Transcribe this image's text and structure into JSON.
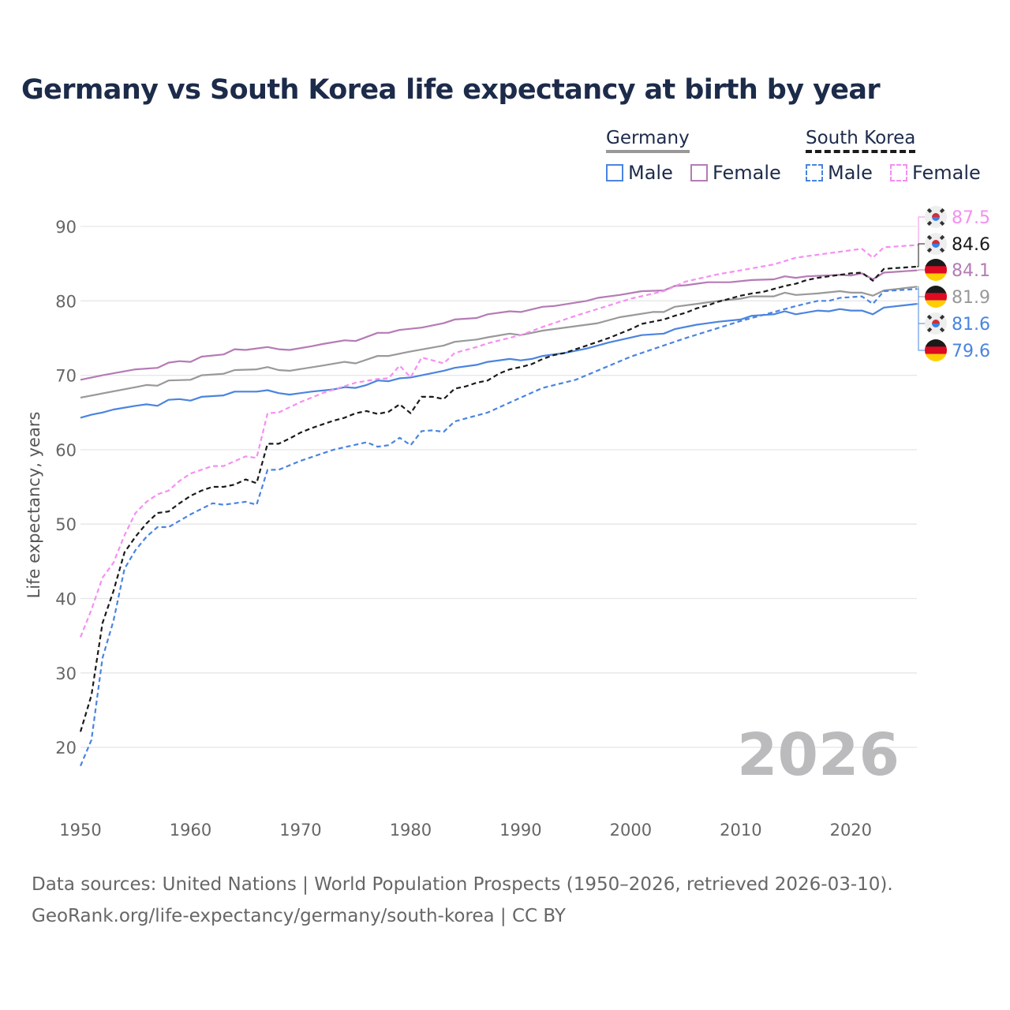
{
  "chart_data": {
    "type": "line",
    "title": "Germany vs South Korea life expectancy at birth by year",
    "xlabel": "",
    "ylabel": "Life expectancy, years",
    "xlim": [
      1950,
      2026
    ],
    "ylim": [
      15,
      92
    ],
    "x_ticks": [
      "1950",
      "1960",
      "1970",
      "1980",
      "1990",
      "2000",
      "2010",
      "2020"
    ],
    "y_ticks": [
      "20",
      "30",
      "40",
      "50",
      "60",
      "70",
      "80",
      "90"
    ],
    "grid": true,
    "watermark_year": "2026",
    "legend": {
      "placement": "top-right",
      "groups": [
        {
          "name": "Germany",
          "items": [
            "Male",
            "Female"
          ]
        },
        {
          "name": "South Korea",
          "items": [
            "Male",
            "Female"
          ]
        }
      ]
    },
    "series": [
      {
        "name": "South Korea Female",
        "country": "kr",
        "color": "#f68ef2",
        "dashed": true,
        "end_label": "87.5",
        "x": [
          1950,
          1951,
          1952,
          1953,
          1954,
          1955,
          1956,
          1957,
          1958,
          1959,
          1960,
          1962,
          1963,
          1965,
          1966,
          1967,
          1968,
          1970,
          1972,
          1975,
          1977,
          1978,
          1979,
          1980,
          1981,
          1983,
          1984,
          1986,
          1987,
          1990,
          1992,
          1995,
          2000,
          2003,
          2005,
          2008,
          2010,
          2013,
          2015,
          2018,
          2020,
          2021,
          2022,
          2023,
          2026
        ],
        "y": [
          34.8,
          38.5,
          42.8,
          44.8,
          48.5,
          51.5,
          53,
          54,
          54.5,
          55.8,
          56.8,
          57.8,
          57.8,
          59.1,
          58.9,
          64.9,
          65,
          66.4,
          67.6,
          69,
          69.5,
          69.6,
          71.3,
          69.7,
          72.4,
          71.6,
          73,
          73.8,
          74.3,
          75.4,
          76.5,
          78,
          80.3,
          81.3,
          82.6,
          83.6,
          84.1,
          84.9,
          85.8,
          86.4,
          86.8,
          87,
          85.8,
          87.2,
          87.5
        ]
      },
      {
        "name": "South Korea",
        "country": "kr",
        "color": "#1a1a1a",
        "dashed": true,
        "end_label": "84.6",
        "x": [
          1950,
          1951,
          1952,
          1953,
          1954,
          1955,
          1956,
          1957,
          1958,
          1959,
          1960,
          1961,
          1962,
          1963,
          1964,
          1965,
          1966,
          1967,
          1968,
          1969,
          1970,
          1971,
          1972,
          1973,
          1974,
          1975,
          1976,
          1977,
          1978,
          1979,
          1980,
          1981,
          1982,
          1983,
          1984,
          1985,
          1986,
          1987,
          1988,
          1989,
          1990,
          1991,
          1992,
          1993,
          1994,
          1995,
          1996,
          1997,
          1998,
          1999,
          2000,
          2001,
          2002,
          2003,
          2004,
          2005,
          2006,
          2007,
          2008,
          2009,
          2010,
          2011,
          2012,
          2013,
          2014,
          2015,
          2016,
          2017,
          2018,
          2019,
          2020,
          2021,
          2022,
          2023,
          2024,
          2025,
          2026
        ],
        "y": [
          22.1,
          27,
          36.7,
          41,
          46.2,
          48.3,
          50.1,
          51.5,
          51.7,
          52.8,
          53.8,
          54.5,
          55,
          55,
          55.3,
          56,
          55.5,
          60.8,
          60.8,
          61.5,
          62.3,
          62.9,
          63.4,
          63.9,
          64.3,
          64.9,
          65.2,
          64.8,
          65.1,
          66.1,
          64.9,
          67.1,
          67.1,
          66.8,
          68.2,
          68.5,
          69,
          69.3,
          70.2,
          70.8,
          71.1,
          71.5,
          72.2,
          72.7,
          73,
          73.5,
          74,
          74.5,
          75,
          75.6,
          76.2,
          76.9,
          77.2,
          77.5,
          78,
          78.4,
          79,
          79.4,
          79.9,
          80.3,
          80.7,
          81,
          81.2,
          81.6,
          82,
          82.3,
          82.8,
          83.1,
          83.3,
          83.5,
          83.7,
          83.8,
          82.7,
          84.3,
          84.4,
          84.5,
          84.6
        ]
      },
      {
        "name": "Germany Female",
        "country": "de",
        "color": "#b57bb5",
        "dashed": false,
        "end_label": "84.1",
        "x": [
          1950,
          1952,
          1955,
          1957,
          1958,
          1959,
          1960,
          1961,
          1963,
          1964,
          1965,
          1967,
          1968,
          1969,
          1971,
          1972,
          1974,
          1975,
          1977,
          1978,
          1979,
          1981,
          1983,
          1984,
          1986,
          1987,
          1989,
          1990,
          1992,
          1993,
          1996,
          1997,
          1999,
          2001,
          2003,
          2004,
          2005,
          2007,
          2009,
          2011,
          2013,
          2014,
          2015,
          2016,
          2019,
          2020,
          2021,
          2022,
          2023,
          2026
        ],
        "y": [
          69.4,
          70,
          70.8,
          71,
          71.7,
          71.9,
          71.8,
          72.5,
          72.8,
          73.5,
          73.4,
          73.8,
          73.5,
          73.4,
          73.9,
          74.2,
          74.7,
          74.6,
          75.7,
          75.7,
          76.1,
          76.4,
          77,
          77.5,
          77.7,
          78.2,
          78.6,
          78.5,
          79.2,
          79.3,
          80,
          80.4,
          80.8,
          81.3,
          81.4,
          82,
          82.1,
          82.5,
          82.5,
          82.8,
          82.9,
          83.3,
          83.1,
          83.3,
          83.5,
          83.4,
          83.7,
          82.9,
          83.8,
          84.1
        ]
      },
      {
        "name": "Germany",
        "country": "de",
        "color": "#999999",
        "dashed": false,
        "end_label": "81.9",
        "x": [
          1950,
          1955,
          1956,
          1957,
          1958,
          1960,
          1961,
          1963,
          1964,
          1966,
          1967,
          1968,
          1969,
          1972,
          1974,
          1975,
          1977,
          1978,
          1980,
          1983,
          1984,
          1986,
          1987,
          1989,
          1990,
          1992,
          1995,
          1997,
          1999,
          2002,
          2003,
          2004,
          2006,
          2008,
          2010,
          2011,
          2013,
          2014,
          2015,
          2017,
          2019,
          2020,
          2021,
          2022,
          2023,
          2026
        ],
        "y": [
          67,
          68.4,
          68.7,
          68.6,
          69.3,
          69.4,
          70,
          70.2,
          70.7,
          70.8,
          71.1,
          70.7,
          70.6,
          71.3,
          71.8,
          71.6,
          72.6,
          72.6,
          73.2,
          74,
          74.5,
          74.8,
          75.1,
          75.6,
          75.4,
          76,
          76.6,
          77,
          77.8,
          78.5,
          78.5,
          79.2,
          79.6,
          80,
          80.3,
          80.6,
          80.6,
          81.1,
          80.8,
          81,
          81.3,
          81.1,
          81.1,
          80.7,
          81.4,
          81.9
        ]
      },
      {
        "name": "South Korea Male",
        "country": "kr",
        "color": "#4a84e0",
        "dashed": true,
        "end_label": "81.6",
        "x": [
          1950,
          1951,
          1952,
          1953,
          1954,
          1955,
          1956,
          1957,
          1958,
          1960,
          1962,
          1963,
          1965,
          1966,
          1967,
          1968,
          1970,
          1973,
          1976,
          1977,
          1978,
          1979,
          1980,
          1981,
          1982,
          1983,
          1984,
          1987,
          1990,
          1992,
          1995,
          2000,
          2005,
          2010,
          2015,
          2017,
          2018,
          2019,
          2021,
          2022,
          2023,
          2026
        ],
        "y": [
          17.5,
          21,
          32,
          37,
          44,
          46.5,
          48.3,
          49.6,
          49.6,
          51.3,
          52.8,
          52.6,
          53,
          52.6,
          57.3,
          57.3,
          58.5,
          60,
          61,
          60.4,
          60.6,
          61.6,
          60.6,
          62.5,
          62.6,
          62.4,
          63.8,
          65,
          67,
          68.3,
          69.4,
          72.5,
          75,
          77.3,
          79.3,
          80,
          80,
          80.4,
          80.6,
          79.6,
          81.3,
          81.6
        ]
      },
      {
        "name": "Germany Male",
        "country": "de",
        "color": "#4a84e0",
        "dashed": false,
        "end_label": "79.6",
        "x": [
          1950,
          1951,
          1952,
          1953,
          1955,
          1956,
          1957,
          1958,
          1959,
          1960,
          1961,
          1963,
          1964,
          1966,
          1967,
          1968,
          1969,
          1971,
          1973,
          1974,
          1975,
          1976,
          1977,
          1978,
          1979,
          1980,
          1983,
          1984,
          1986,
          1987,
          1989,
          1990,
          1991,
          1992,
          1994,
          1996,
          1998,
          2001,
          2003,
          2004,
          2006,
          2008,
          2010,
          2011,
          2013,
          2014,
          2015,
          2017,
          2018,
          2019,
          2020,
          2021,
          2022,
          2023,
          2026
        ],
        "y": [
          64.3,
          64.7,
          65,
          65.4,
          65.9,
          66.1,
          65.9,
          66.7,
          66.8,
          66.6,
          67.1,
          67.3,
          67.8,
          67.8,
          68,
          67.6,
          67.4,
          67.8,
          68.1,
          68.4,
          68.3,
          68.7,
          69.3,
          69.2,
          69.6,
          69.7,
          70.6,
          71,
          71.4,
          71.8,
          72.2,
          72,
          72.2,
          72.6,
          73,
          73.6,
          74.4,
          75.4,
          75.6,
          76.2,
          76.8,
          77.2,
          77.5,
          78,
          78.2,
          78.6,
          78.2,
          78.7,
          78.6,
          78.9,
          78.7,
          78.7,
          78.2,
          79.1,
          79.6
        ]
      }
    ]
  },
  "legend": {
    "germany": "Germany",
    "south_korea": "South Korea",
    "male": "Male",
    "female": "Female"
  },
  "footer": {
    "line1": "Data sources: United Nations | World Population Prospects (1950–2026, retrieved 2026-03-10).",
    "line2": "GeoRank.org/life-expectancy/germany/south-korea | CC BY"
  }
}
